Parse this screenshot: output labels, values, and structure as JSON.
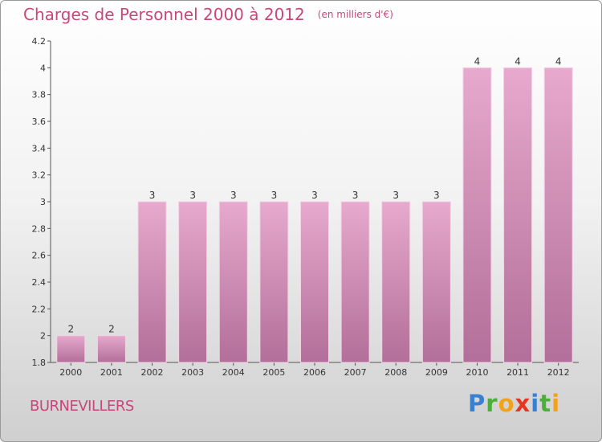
{
  "header": {
    "title": "Charges de Personnel 2000 à 2012",
    "subtitle": "(en milliers d'€)"
  },
  "footer": {
    "commune": "BURNEVILLERS",
    "brand": "Proxiti"
  },
  "colors": {
    "bar_top": "#e7a9cd",
    "bar_bottom": "#b26f99",
    "text_accent": "#c8477a"
  },
  "chart_data": {
    "type": "bar",
    "title": "Charges de Personnel 2000 à 2012",
    "subtitle": "(en milliers d'€)",
    "categories": [
      "2000",
      "2001",
      "2002",
      "2003",
      "2004",
      "2005",
      "2006",
      "2007",
      "2008",
      "2009",
      "2010",
      "2011",
      "2012"
    ],
    "values": [
      2,
      2,
      3,
      3,
      3,
      3,
      3,
      3,
      3,
      3,
      4,
      4,
      4
    ],
    "data_labels": [
      "2",
      "2",
      "3",
      "3",
      "3",
      "3",
      "3",
      "3",
      "3",
      "3",
      "4",
      "4",
      "4"
    ],
    "ylim": [
      1.8,
      4.2
    ],
    "yticks": [
      1.8,
      2,
      2.2,
      2.4,
      2.6,
      2.8,
      3,
      3.2,
      3.4,
      3.6,
      3.8,
      4,
      4.2
    ],
    "ytick_labels": [
      "1.8",
      "2",
      "2.2",
      "2.4",
      "2.6",
      "2.8",
      "3",
      "3.2",
      "3.4",
      "3.6",
      "3.8",
      "4",
      "4.2"
    ],
    "grid": false,
    "legend": "none"
  }
}
